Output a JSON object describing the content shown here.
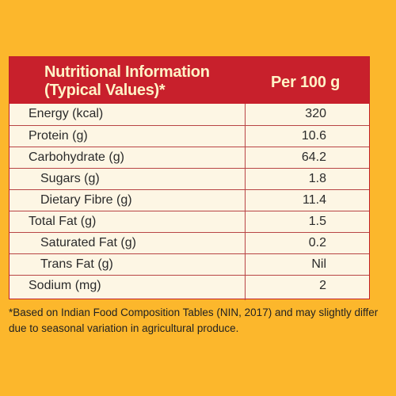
{
  "table": {
    "header_line1": "Nutritional Information",
    "header_line2": "(Typical Values)*",
    "value_header": "Per 100 g",
    "rows": [
      {
        "label": "Energy (kcal)",
        "value": "320"
      },
      {
        "label": "Protein (g)",
        "value": "10.6"
      },
      {
        "label": "Carbohydrate (g)",
        "value": "64.2"
      },
      {
        "label": "Sugars (g)",
        "value": "1.8"
      },
      {
        "label": "Dietary Fibre (g)",
        "value": "11.4"
      },
      {
        "label": "Total Fat (g)",
        "value": "1.5"
      },
      {
        "label": "Saturated Fat (g)",
        "value": "0.2"
      },
      {
        "label": "Trans Fat (g)",
        "value": "Nil"
      },
      {
        "label": "Sodium (mg)",
        "value": "2"
      }
    ]
  },
  "footnote": "*Based on Indian Food Composition Tables (NIN, 2017) and may slightly differ due to seasonal variation in agricultural produce.",
  "colors": {
    "background": "#fcb72c",
    "header_red": "#c8202c",
    "header_text": "#fff3c7",
    "table_bg": "#fdf6e4"
  }
}
